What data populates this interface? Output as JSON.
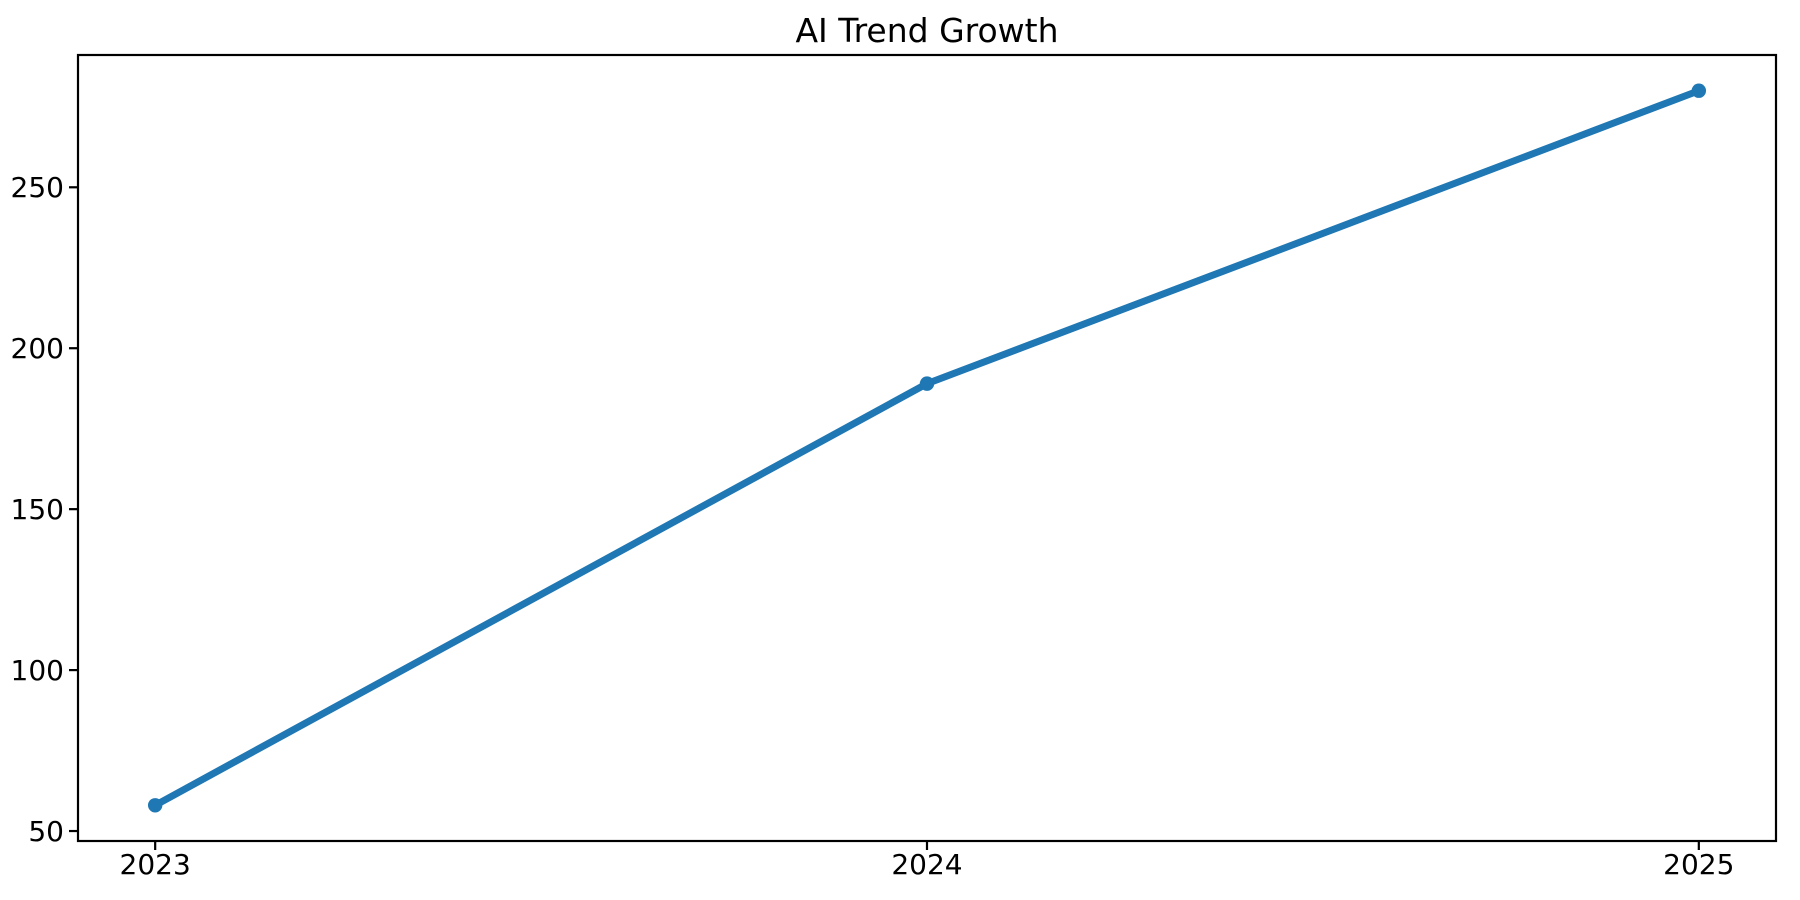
{
  "chart_data": {
    "type": "line",
    "title": "AI Trend Growth",
    "x": [
      2023,
      2024,
      2025
    ],
    "values": [
      58,
      189,
      280
    ],
    "x_tick_labels": [
      "2023",
      "2024",
      "2025"
    ],
    "y_ticks": [
      50,
      100,
      150,
      200,
      250
    ],
    "xlim": [
      2022.9,
      2025.1
    ],
    "ylim": [
      46.9,
      291.1
    ],
    "xlabel": "",
    "ylabel": "",
    "grid": false,
    "legend": "none",
    "line_color": "#1f77b4",
    "marker": "circle",
    "axis_color": "#000000",
    "text_color": "#000000",
    "background": "#ffffff"
  }
}
